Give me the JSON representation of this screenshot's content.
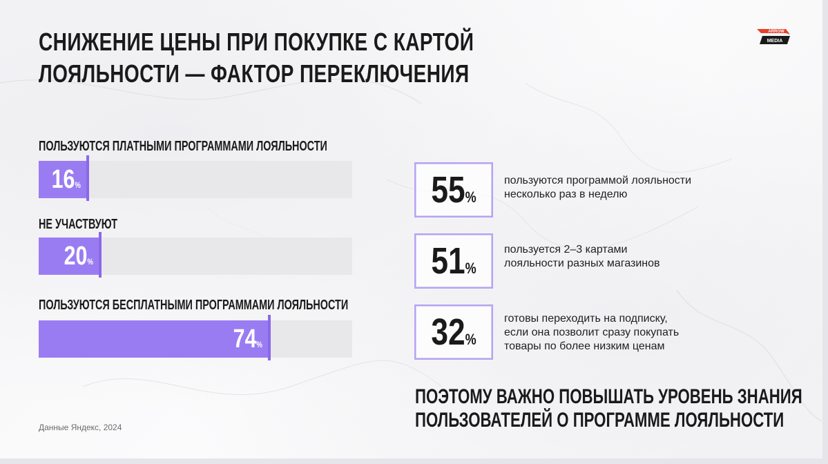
{
  "slide": {
    "title_lines": [
      "СНИЖЕНИЕ ЦЕНЫ ПРИ ПОКУПКЕ С КАРТОЙ",
      "ЛОЯЛЬНОСТИ — ФАКТОР ПЕРЕКЛЮЧЕНИЯ"
    ],
    "logo": {
      "line1": "ARROW",
      "line2": "MEDIA",
      "color": "#e8402c"
    },
    "source": "Данные Яндекс, 2024",
    "conclusion_lines": [
      "ПОЭТОМУ ВАЖНО ПОВЫШАТЬ УРОВЕНЬ ЗНАНИЯ",
      "ПОЛЬЗОВАТЕЛЕЙ О ПРОГРАММЕ ЛОЯЛЬНОСТИ"
    ]
  },
  "chart_data": {
    "type": "bar",
    "orientation": "horizontal",
    "categories": [
      "ПОЛЬЗУЮТСЯ ПЛАТНЫМИ ПРОГРАММАМИ ЛОЯЛЬНОСТИ",
      "НЕ УЧАСТВУЮТ",
      "ПОЛЬЗУЮТСЯ БЕСПЛАТНЫМИ ПРОГРАММАМИ ЛОЯЛЬНОСТИ"
    ],
    "values": [
      16,
      20,
      74
    ],
    "value_labels": [
      "16",
      "20",
      "74"
    ],
    "unit": "%",
    "xlim": [
      0,
      100
    ],
    "grid": false,
    "colors": {
      "fill": "#9a7cf2",
      "track": "#e8e8ea",
      "marker": "#8a68ea"
    }
  },
  "stats": [
    {
      "value": "55",
      "unit": "%",
      "desc_lines": [
        "пользуются программой лояльности",
        "несколько раз в неделю"
      ]
    },
    {
      "value": "51",
      "unit": "%",
      "desc_lines": [
        "пользуется 2–3 картами",
        "лояльности разных магазинов"
      ]
    },
    {
      "value": "32",
      "unit": "%",
      "desc_lines": [
        "готовы переходить на подписку,",
        "если она позволит сразу покупать",
        "товары по более низким ценам"
      ]
    }
  ],
  "colors": {
    "accent": "#9a7cf2",
    "box_border": "#b6a3f2",
    "text": "#1a1a1a"
  }
}
